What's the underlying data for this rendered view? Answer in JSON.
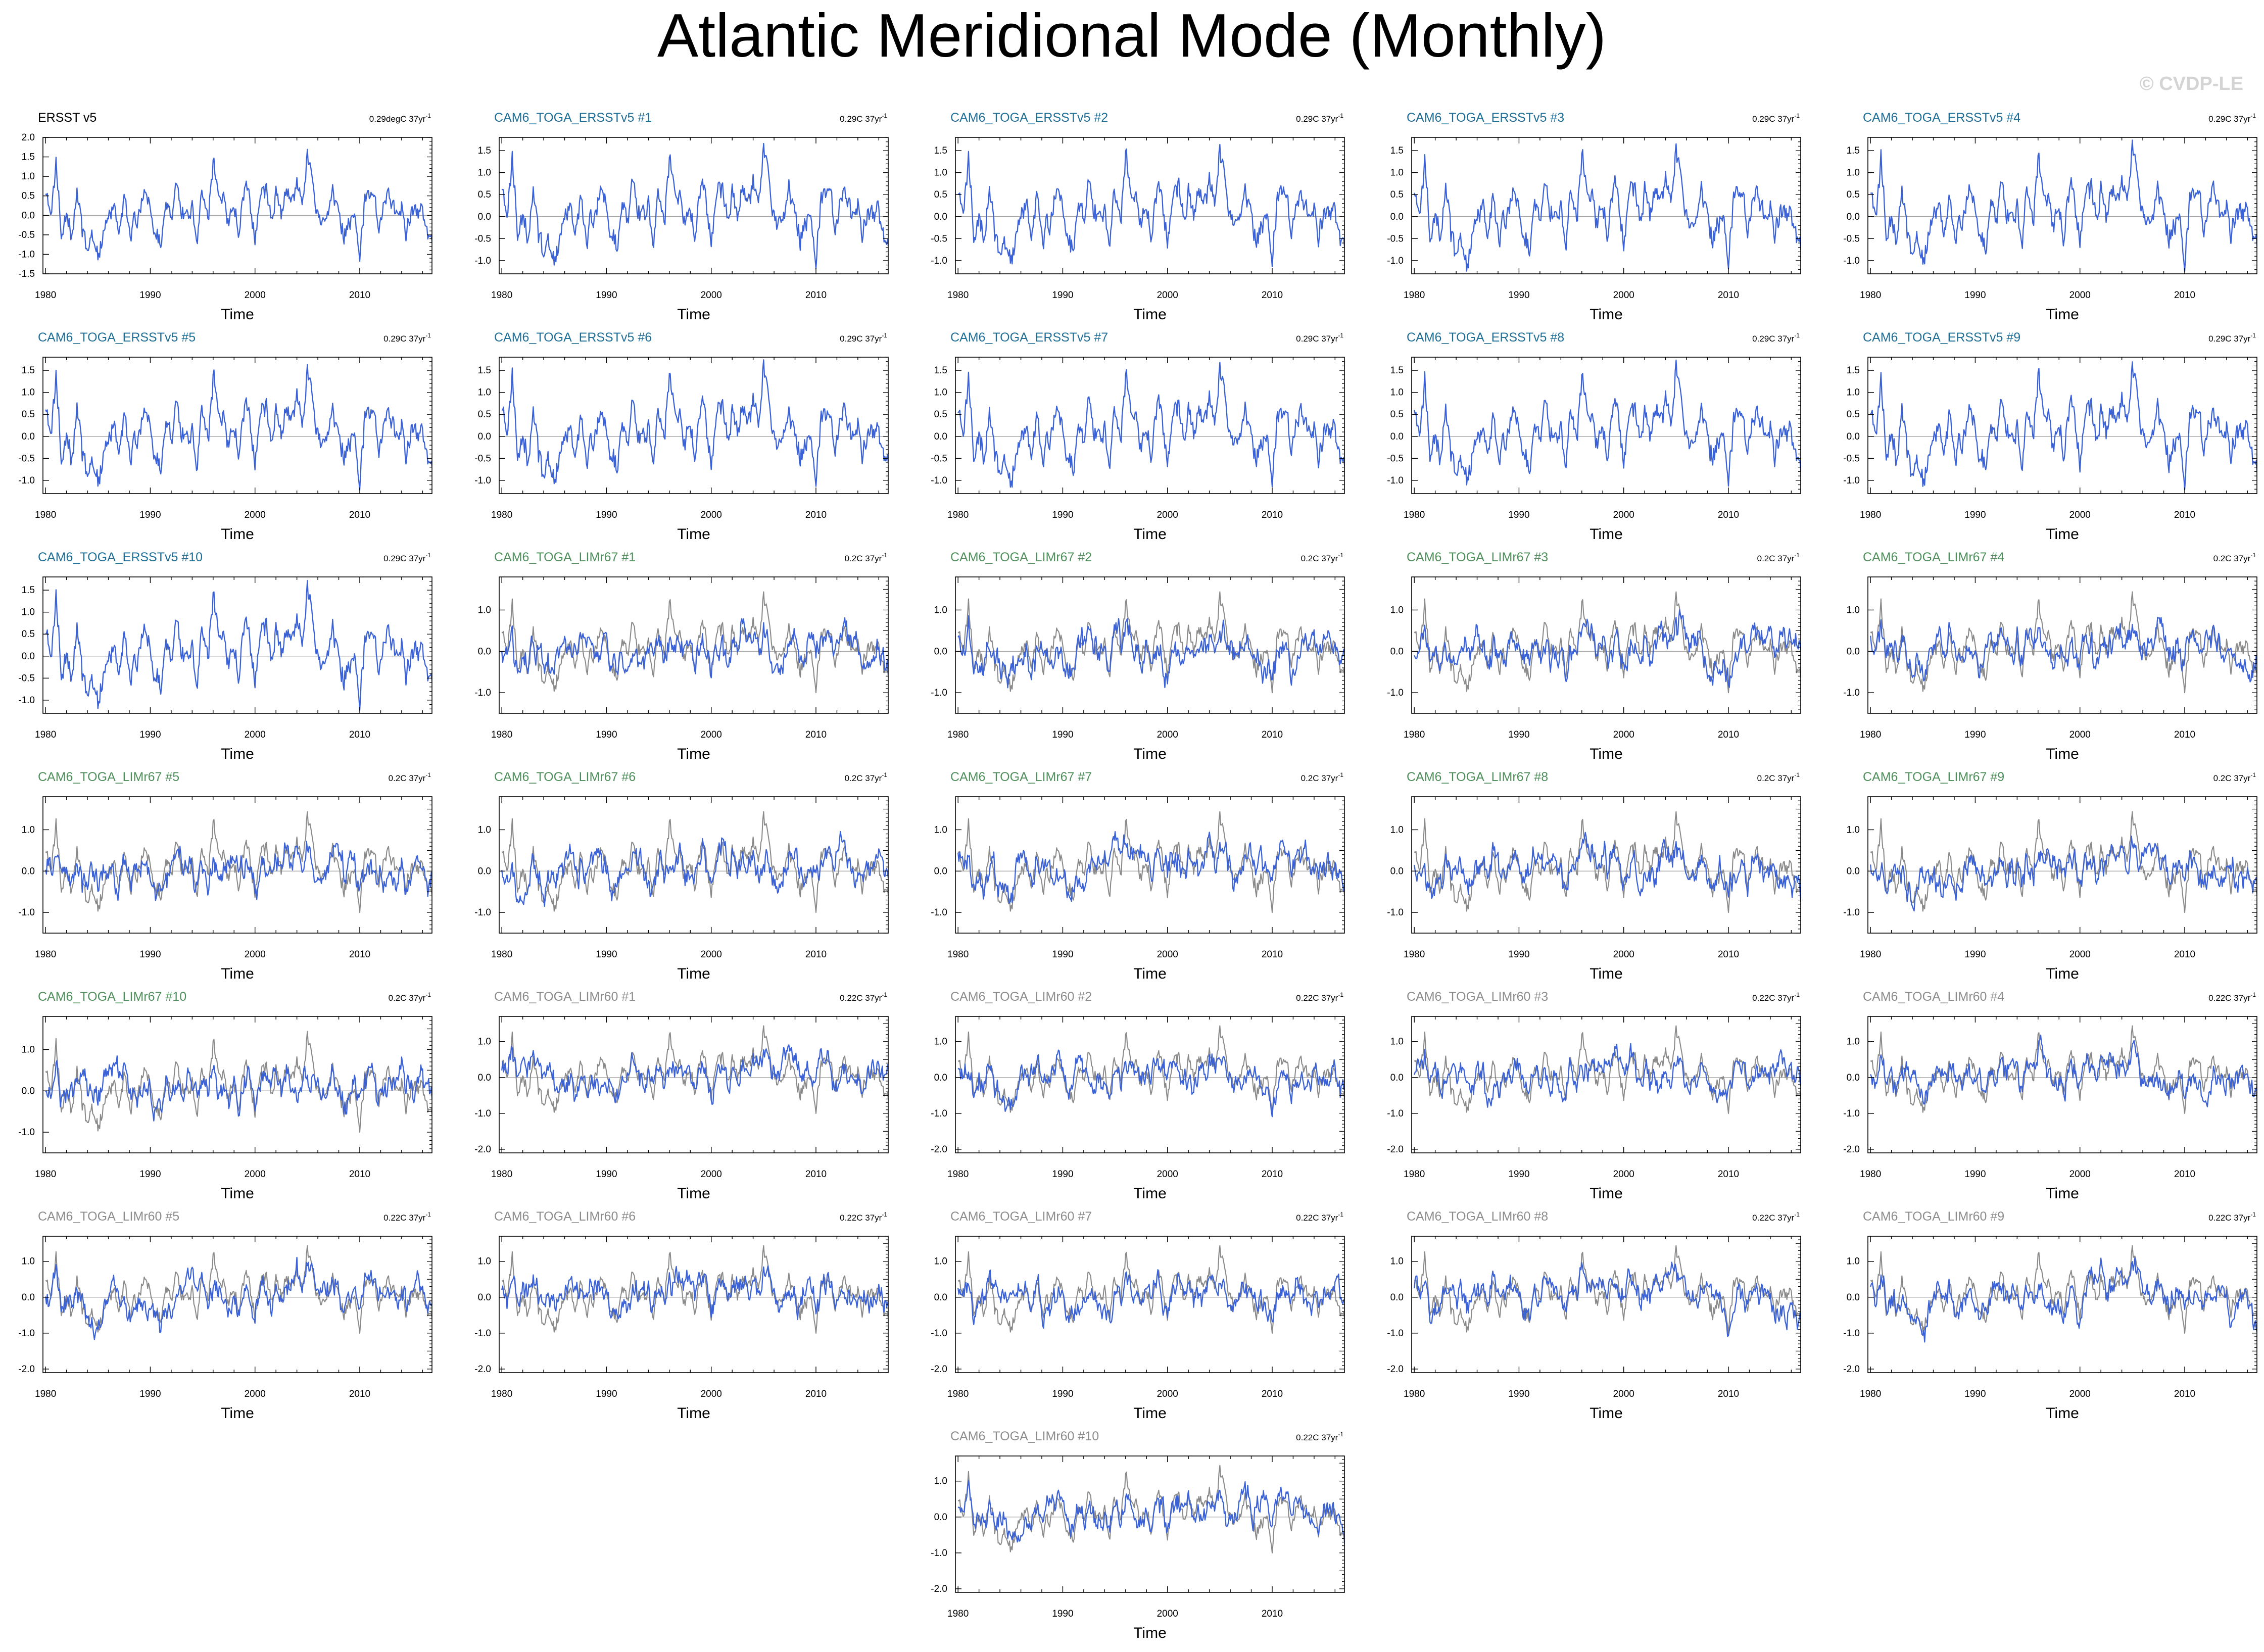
{
  "figure": {
    "title": "Atlantic Meridional Mode (Monthly)",
    "watermark": "© CVDP-LE",
    "xlabel": "Time",
    "x_ticks": [
      "1980",
      "1990",
      "2000",
      "2010"
    ],
    "colors": {
      "model_line": "#3a62d6",
      "obs_line": "#8a8a8a",
      "title_obs": "#000000",
      "title_ersst": "#1f6e96",
      "title_lim67": "#4f8f5c",
      "title_lim60": "#8c8c8c",
      "watermark": "#d4d4d4"
    }
  },
  "chart_data": {
    "type": "line",
    "x_range": [
      1979.75,
      2016.9
    ],
    "y_range_note": "Per panel group: ERSST v5 [-1.5, 2.0]; ERSSTv5 members [-1.3, 1.8]; LIMr67 members [-1.5, 1.8]; LIMr60 members [-2.1, 1.7]",
    "groups": [
      {
        "id": "obs",
        "ylim": [
          -1.5,
          2.0
        ],
        "y_ticks": [
          "2.0",
          "1.5",
          "1.0",
          "0.5",
          "0.0",
          "-0.5",
          "-1.0",
          "-1.5"
        ],
        "y_tick_values": [
          2.0,
          1.5,
          1.0,
          0.5,
          0.0,
          -0.5,
          -1.0,
          -1.5
        ],
        "amplitude_scale": 1.0,
        "show_obs_overlay": false
      },
      {
        "id": "ersst",
        "ylim": [
          -1.3,
          1.8
        ],
        "y_ticks": [
          "1.5",
          "1.0",
          "0.5",
          "0.0",
          "-0.5",
          "-1.0"
        ],
        "y_tick_values": [
          1.5,
          1.0,
          0.5,
          0.0,
          -0.5,
          -1.0
        ],
        "amplitude_scale": 1.0,
        "show_obs_overlay": false
      },
      {
        "id": "lim67",
        "ylim": [
          -1.5,
          1.8
        ],
        "y_ticks": [
          "1.0",
          "0.0",
          "-1.0"
        ],
        "y_tick_values": [
          1.0,
          0.0,
          -1.0
        ],
        "amplitude_scale": 0.7,
        "show_obs_overlay": true
      },
      {
        "id": "lim60",
        "ylim": [
          -2.1,
          1.7
        ],
        "y_ticks": [
          "1.0",
          "0.0",
          "-1.0",
          "-2.0"
        ],
        "y_tick_values": [
          1.0,
          0.0,
          -1.0,
          -2.0
        ],
        "amplitude_scale": 0.75,
        "show_obs_overlay": true
      }
    ],
    "series_obs_anchors": {
      "name": "ERSST v5",
      "x": [
        1980.0,
        1980.5,
        1981.0,
        1981.5,
        1982.0,
        1982.5,
        1983.0,
        1983.5,
        1984.0,
        1984.5,
        1985.0,
        1985.5,
        1986.0,
        1986.5,
        1987.0,
        1987.5,
        1988.0,
        1988.5,
        1989.0,
        1989.5,
        1990.0,
        1990.5,
        1991.0,
        1991.5,
        1992.0,
        1992.5,
        1993.0,
        1993.5,
        1994.0,
        1994.5,
        1995.0,
        1995.5,
        1996.0,
        1996.5,
        1997.0,
        1997.5,
        1998.0,
        1998.5,
        1999.0,
        1999.5,
        2000.0,
        2000.5,
        2001.0,
        2001.5,
        2002.0,
        2002.5,
        2003.0,
        2003.5,
        2004.0,
        2004.5,
        2005.0,
        2005.5,
        2006.0,
        2006.5,
        2007.0,
        2007.5,
        2008.0,
        2008.5,
        2009.0,
        2009.5,
        2010.0,
        2010.5,
        2011.0,
        2011.5,
        2012.0,
        2012.5,
        2013.0,
        2013.5,
        2014.0,
        2014.5,
        2015.0,
        2015.5,
        2016.0,
        2016.5
      ],
      "y": [
        0.8,
        0.2,
        1.3,
        -0.3,
        0.2,
        -0.6,
        0.9,
        -0.5,
        -0.9,
        -0.6,
        -1.0,
        -0.5,
        -0.2,
        0.4,
        -0.3,
        0.5,
        -0.7,
        -0.2,
        0.2,
        0.8,
        0.2,
        -0.4,
        -0.7,
        0.4,
        -0.3,
        1.0,
        0.2,
        -0.1,
        0.1,
        -0.4,
        0.5,
        -0.3,
        1.4,
        0.3,
        0.6,
        -0.2,
        0.2,
        -0.3,
        0.8,
        0.2,
        -0.6,
        0.4,
        0.6,
        0.0,
        0.5,
        -0.2,
        0.6,
        0.3,
        0.8,
        0.4,
        1.5,
        0.7,
        0.2,
        -0.3,
        -0.1,
        0.5,
        0.3,
        -0.5,
        -0.2,
        0.4,
        -1.0,
        0.5,
        0.6,
        0.2,
        -0.3,
        0.5,
        0.2,
        -0.2,
        0.4,
        -0.4,
        0.3,
        -0.1,
        0.1,
        -0.5
      ]
    },
    "panels": [
      {
        "title": "ERSST v5",
        "trend_value": "0.29degC 37yr",
        "trend_exp": "-1",
        "group": "obs",
        "title_color": "#000000",
        "seed": 0
      },
      {
        "title": "CAM6_TOGA_ERSSTv5 #1",
        "trend_value": "0.29C 37yr",
        "trend_exp": "-1",
        "group": "ersst",
        "title_color": "#1f6e96",
        "seed": 1
      },
      {
        "title": "CAM6_TOGA_ERSSTv5 #2",
        "trend_value": "0.29C 37yr",
        "trend_exp": "-1",
        "group": "ersst",
        "title_color": "#1f6e96",
        "seed": 2
      },
      {
        "title": "CAM6_TOGA_ERSSTv5 #3",
        "trend_value": "0.29C 37yr",
        "trend_exp": "-1",
        "group": "ersst",
        "title_color": "#1f6e96",
        "seed": 3
      },
      {
        "title": "CAM6_TOGA_ERSSTv5 #4",
        "trend_value": "0.29C 37yr",
        "trend_exp": "-1",
        "group": "ersst",
        "title_color": "#1f6e96",
        "seed": 4
      },
      {
        "title": "CAM6_TOGA_ERSSTv5 #5",
        "trend_value": "0.29C 37yr",
        "trend_exp": "-1",
        "group": "ersst",
        "title_color": "#1f6e96",
        "seed": 5
      },
      {
        "title": "CAM6_TOGA_ERSSTv5 #6",
        "trend_value": "0.29C 37yr",
        "trend_exp": "-1",
        "group": "ersst",
        "title_color": "#1f6e96",
        "seed": 6
      },
      {
        "title": "CAM6_TOGA_ERSSTv5 #7",
        "trend_value": "0.29C 37yr",
        "trend_exp": "-1",
        "group": "ersst",
        "title_color": "#1f6e96",
        "seed": 7
      },
      {
        "title": "CAM6_TOGA_ERSSTv5 #8",
        "trend_value": "0.29C 37yr",
        "trend_exp": "-1",
        "group": "ersst",
        "title_color": "#1f6e96",
        "seed": 8
      },
      {
        "title": "CAM6_TOGA_ERSSTv5 #9",
        "trend_value": "0.29C 37yr",
        "trend_exp": "-1",
        "group": "ersst",
        "title_color": "#1f6e96",
        "seed": 9
      },
      {
        "title": "CAM6_TOGA_ERSSTv5 #10",
        "trend_value": "0.29C 37yr",
        "trend_exp": "-1",
        "group": "ersst",
        "title_color": "#1f6e96",
        "seed": 10
      },
      {
        "title": "CAM6_TOGA_LIMr67 #1",
        "trend_value": "0.2C 37yr",
        "trend_exp": "-1",
        "group": "lim67",
        "title_color": "#4f8f5c",
        "seed": 11
      },
      {
        "title": "CAM6_TOGA_LIMr67 #2",
        "trend_value": "0.2C 37yr",
        "trend_exp": "-1",
        "group": "lim67",
        "title_color": "#4f8f5c",
        "seed": 12
      },
      {
        "title": "CAM6_TOGA_LIMr67 #3",
        "trend_value": "0.2C 37yr",
        "trend_exp": "-1",
        "group": "lim67",
        "title_color": "#4f8f5c",
        "seed": 13
      },
      {
        "title": "CAM6_TOGA_LIMr67 #4",
        "trend_value": "0.2C 37yr",
        "trend_exp": "-1",
        "group": "lim67",
        "title_color": "#4f8f5c",
        "seed": 14
      },
      {
        "title": "CAM6_TOGA_LIMr67 #5",
        "trend_value": "0.2C 37yr",
        "trend_exp": "-1",
        "group": "lim67",
        "title_color": "#4f8f5c",
        "seed": 15
      },
      {
        "title": "CAM6_TOGA_LIMr67 #6",
        "trend_value": "0.2C 37yr",
        "trend_exp": "-1",
        "group": "lim67",
        "title_color": "#4f8f5c",
        "seed": 16
      },
      {
        "title": "CAM6_TOGA_LIMr67 #7",
        "trend_value": "0.2C 37yr",
        "trend_exp": "-1",
        "group": "lim67",
        "title_color": "#4f8f5c",
        "seed": 17
      },
      {
        "title": "CAM6_TOGA_LIMr67 #8",
        "trend_value": "0.2C 37yr",
        "trend_exp": "-1",
        "group": "lim67",
        "title_color": "#4f8f5c",
        "seed": 18
      },
      {
        "title": "CAM6_TOGA_LIMr67 #9",
        "trend_value": "0.2C 37yr",
        "trend_exp": "-1",
        "group": "lim67",
        "title_color": "#4f8f5c",
        "seed": 19
      },
      {
        "title": "CAM6_TOGA_LIMr67 #10",
        "trend_value": "0.2C 37yr",
        "trend_exp": "-1",
        "group": "lim67",
        "title_color": "#4f8f5c",
        "seed": 20
      },
      {
        "title": "CAM6_TOGA_LIMr60 #1",
        "trend_value": "0.22C 37yr",
        "trend_exp": "-1",
        "group": "lim60",
        "title_color": "#8c8c8c",
        "seed": 21
      },
      {
        "title": "CAM6_TOGA_LIMr60 #2",
        "trend_value": "0.22C 37yr",
        "trend_exp": "-1",
        "group": "lim60",
        "title_color": "#8c8c8c",
        "seed": 22
      },
      {
        "title": "CAM6_TOGA_LIMr60 #3",
        "trend_value": "0.22C 37yr",
        "trend_exp": "-1",
        "group": "lim60",
        "title_color": "#8c8c8c",
        "seed": 23
      },
      {
        "title": "CAM6_TOGA_LIMr60 #4",
        "trend_value": "0.22C 37yr",
        "trend_exp": "-1",
        "group": "lim60",
        "title_color": "#8c8c8c",
        "seed": 24
      },
      {
        "title": "CAM6_TOGA_LIMr60 #5",
        "trend_value": "0.22C 37yr",
        "trend_exp": "-1",
        "group": "lim60",
        "title_color": "#8c8c8c",
        "seed": 25
      },
      {
        "title": "CAM6_TOGA_LIMr60 #6",
        "trend_value": "0.22C 37yr",
        "trend_exp": "-1",
        "group": "lim60",
        "title_color": "#8c8c8c",
        "seed": 26
      },
      {
        "title": "CAM6_TOGA_LIMr60 #7",
        "trend_value": "0.22C 37yr",
        "trend_exp": "-1",
        "group": "lim60",
        "title_color": "#8c8c8c",
        "seed": 27
      },
      {
        "title": "CAM6_TOGA_LIMr60 #8",
        "trend_value": "0.22C 37yr",
        "trend_exp": "-1",
        "group": "lim60",
        "title_color": "#8c8c8c",
        "seed": 28
      },
      {
        "title": "CAM6_TOGA_LIMr60 #9",
        "trend_value": "0.22C 37yr",
        "trend_exp": "-1",
        "group": "lim60",
        "title_color": "#8c8c8c",
        "seed": 29
      },
      {
        "title": "CAM6_TOGA_LIMr60 #10",
        "trend_value": "0.22C 37yr",
        "trend_exp": "-1",
        "group": "lim60",
        "title_color": "#8c8c8c",
        "seed": 30
      }
    ]
  }
}
